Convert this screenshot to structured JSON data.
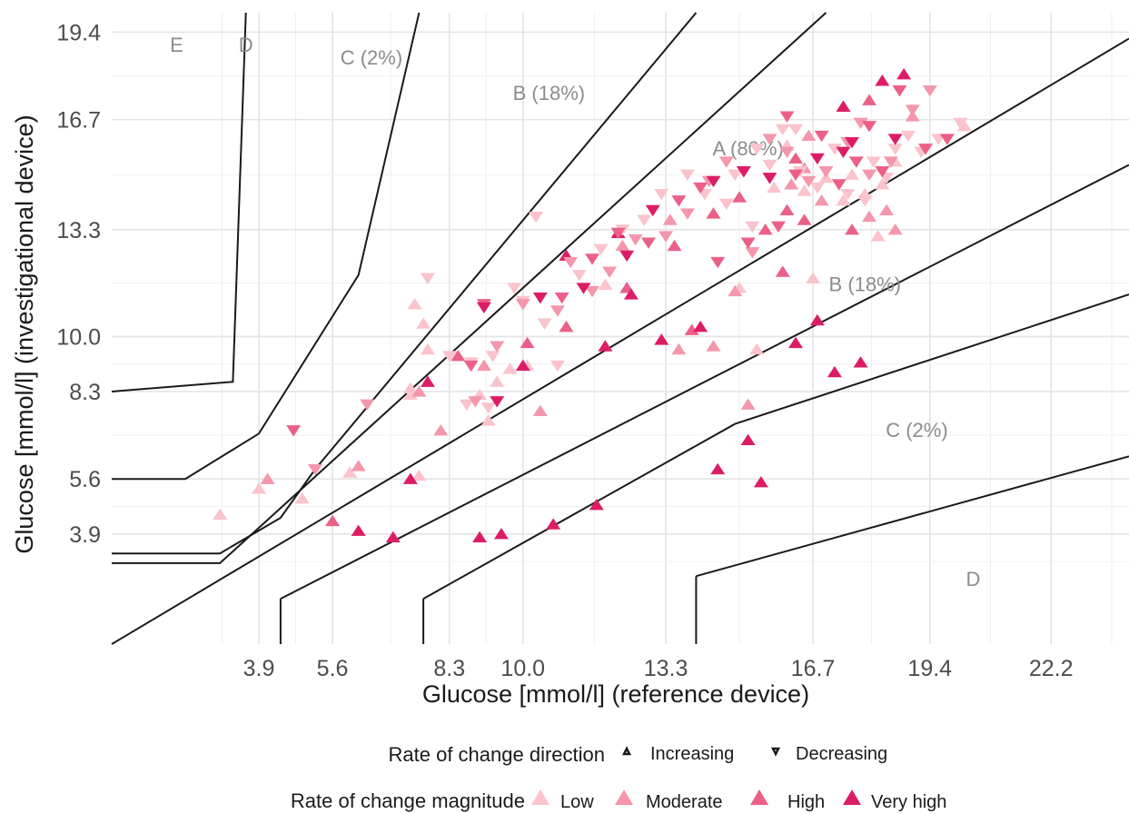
{
  "chart_data": {
    "type": "scatter",
    "title": "",
    "xlabel": "Glucose [mmol/l] (reference device)",
    "ylabel": "Glucose [mmol/l] (investigational device)",
    "xlim": [
      0.5,
      24
    ],
    "ylim": [
      0.5,
      20
    ],
    "xticks": [
      3.9,
      5.6,
      8.3,
      10.0,
      13.3,
      16.7,
      19.4,
      22.2
    ],
    "yticks": [
      3.9,
      5.6,
      8.3,
      10.0,
      13.3,
      16.7,
      19.4
    ],
    "grid": true,
    "zones": [
      {
        "label": "E",
        "x": 2.0,
        "y": 18.8
      },
      {
        "label": "D",
        "x": 3.6,
        "y": 18.8
      },
      {
        "label": "C (2%)",
        "x": 6.5,
        "y": 18.4
      },
      {
        "label": "B (18%)",
        "x": 10.6,
        "y": 17.3
      },
      {
        "label": "A (80%)",
        "x": 15.2,
        "y": 15.6
      },
      {
        "label": "B (18%)",
        "x": 17.9,
        "y": 11.4
      },
      {
        "label": "C (2%)",
        "x": 19.1,
        "y": 6.9
      },
      {
        "label": "D",
        "x": 20.4,
        "y": 2.3
      }
    ],
    "boundary_lines": [
      [
        [
          0.5,
          8.3
        ],
        [
          3.3,
          8.6
        ],
        [
          3.6,
          20.0
        ]
      ],
      [
        [
          0.5,
          5.6
        ],
        [
          2.2,
          5.6
        ],
        [
          3.9,
          7.0
        ],
        [
          6.2,
          11.9
        ],
        [
          7.6,
          20.0
        ]
      ],
      [
        [
          0.5,
          3.3
        ],
        [
          3.0,
          3.3
        ],
        [
          4.4,
          4.4
        ],
        [
          5.2,
          5.9
        ],
        [
          14.0,
          20.0
        ]
      ],
      [
        [
          0.5,
          3.0
        ],
        [
          3.0,
          3.0
        ],
        [
          17.0,
          20.0
        ]
      ],
      [
        [
          0.5,
          0.5
        ],
        [
          24.0,
          19.2
        ]
      ],
      [
        [
          4.4,
          1.9
        ],
        [
          4.4,
          0.5
        ]
      ],
      [
        [
          4.4,
          1.9
        ],
        [
          24.0,
          15.3
        ]
      ],
      [
        [
          7.7,
          1.9
        ],
        [
          7.7,
          0.5
        ]
      ],
      [
        [
          7.7,
          1.9
        ],
        [
          14.9,
          7.3
        ],
        [
          24.0,
          11.3
        ]
      ],
      [
        [
          14.0,
          2.6
        ],
        [
          14.0,
          0.5
        ]
      ],
      [
        [
          14.0,
          2.6
        ],
        [
          24.0,
          6.3
        ]
      ]
    ],
    "legend": {
      "direction_title": "Rate of change direction",
      "direction": [
        {
          "label": "Increasing",
          "shape": "triangle-up"
        },
        {
          "label": "Decreasing",
          "shape": "triangle-down"
        }
      ],
      "magnitude_title": "Rate of change magnitude",
      "magnitude": [
        {
          "label": "Low",
          "color": "#fbc3cc"
        },
        {
          "label": "Moderate",
          "color": "#f497ac"
        },
        {
          "label": "High",
          "color": "#ec6088"
        },
        {
          "label": "Very high",
          "color": "#dc1d66"
        }
      ]
    },
    "series": [
      {
        "dir": "up",
        "mag": "Low",
        "points": [
          [
            3.0,
            4.5
          ],
          [
            3.9,
            5.3
          ],
          [
            4.9,
            5.0
          ],
          [
            6.0,
            5.8
          ],
          [
            7.6,
            5.7
          ],
          [
            7.4,
            8.2
          ],
          [
            7.4,
            8.4
          ],
          [
            7.5,
            11.0
          ],
          [
            7.7,
            10.4
          ],
          [
            7.8,
            9.6
          ],
          [
            9.0,
            8.2
          ],
          [
            9.2,
            7.4
          ],
          [
            9.4,
            8.6
          ],
          [
            9.7,
            9.0
          ],
          [
            10.1,
            9.1
          ],
          [
            11.9,
            11.6
          ],
          [
            15.0,
            11.5
          ],
          [
            16.7,
            11.8
          ],
          [
            15.8,
            14.6
          ],
          [
            16.5,
            14.5
          ],
          [
            17.0,
            14.9
          ],
          [
            17.4,
            14.2
          ],
          [
            17.6,
            15.0
          ],
          [
            17.9,
            14.4
          ],
          [
            18.3,
            14.7
          ],
          [
            18.6,
            15.4
          ],
          [
            18.2,
            13.1
          ],
          [
            15.4,
            9.6
          ],
          [
            16.1,
            15.9
          ],
          [
            20.2,
            16.5
          ]
        ]
      },
      {
        "dir": "up",
        "mag": "Moderate",
        "points": [
          [
            4.1,
            5.6
          ],
          [
            6.2,
            6.0
          ],
          [
            7.6,
            8.3
          ],
          [
            8.1,
            7.1
          ],
          [
            9.1,
            9.1
          ],
          [
            10.4,
            7.7
          ],
          [
            12.3,
            12.8
          ],
          [
            13.4,
            13.6
          ],
          [
            13.6,
            9.6
          ],
          [
            14.4,
            9.7
          ],
          [
            14.9,
            11.4
          ],
          [
            15.2,
            7.9
          ],
          [
            16.2,
            14.7
          ],
          [
            16.5,
            15.2
          ],
          [
            16.9,
            14.2
          ],
          [
            17.4,
            17.1
          ],
          [
            18.0,
            13.7
          ],
          [
            18.4,
            13.9
          ],
          [
            18.6,
            13.3
          ],
          [
            16.6,
            16.2
          ],
          [
            19.0,
            16.8
          ]
        ]
      },
      {
        "dir": "up",
        "mag": "High",
        "points": [
          [
            5.6,
            4.3
          ],
          [
            8.5,
            9.4
          ],
          [
            10.1,
            9.8
          ],
          [
            11.0,
            10.3
          ],
          [
            12.4,
            11.5
          ],
          [
            13.5,
            12.8
          ],
          [
            13.9,
            10.2
          ],
          [
            14.4,
            13.8
          ],
          [
            15.0,
            14.3
          ],
          [
            15.6,
            13.3
          ],
          [
            16.1,
            13.9
          ],
          [
            16.0,
            12.0
          ],
          [
            16.5,
            13.6
          ],
          [
            16.3,
            15.5
          ],
          [
            17.6,
            13.3
          ],
          [
            18.0,
            17.3
          ]
        ]
      },
      {
        "dir": "up",
        "mag": "Very high",
        "points": [
          [
            6.2,
            4.0
          ],
          [
            7.0,
            3.8
          ],
          [
            7.4,
            5.6
          ],
          [
            7.8,
            8.6
          ],
          [
            9.0,
            3.8
          ],
          [
            9.5,
            3.9
          ],
          [
            10.0,
            9.1
          ],
          [
            10.7,
            4.2
          ],
          [
            11.0,
            12.5
          ],
          [
            11.7,
            4.8
          ],
          [
            11.9,
            9.7
          ],
          [
            12.2,
            13.2
          ],
          [
            12.5,
            11.3
          ],
          [
            13.2,
            9.9
          ],
          [
            14.1,
            10.3
          ],
          [
            14.5,
            5.9
          ],
          [
            15.2,
            6.8
          ],
          [
            15.5,
            5.5
          ],
          [
            16.3,
            9.8
          ],
          [
            16.8,
            10.5
          ],
          [
            17.2,
            8.9
          ],
          [
            17.8,
            9.2
          ],
          [
            18.8,
            18.1
          ],
          [
            18.3,
            17.9
          ],
          [
            17.4,
            17.1
          ]
        ]
      },
      {
        "dir": "down",
        "mag": "Low",
        "points": [
          [
            7.8,
            11.8
          ],
          [
            8.3,
            9.4
          ],
          [
            8.8,
            9.2
          ],
          [
            9.3,
            9.4
          ],
          [
            9.8,
            11.5
          ],
          [
            10.0,
            11.1
          ],
          [
            10.5,
            10.4
          ],
          [
            10.3,
            13.7
          ],
          [
            10.8,
            9.1
          ],
          [
            11.3,
            11.9
          ],
          [
            11.8,
            12.7
          ],
          [
            12.3,
            13.3
          ],
          [
            12.8,
            13.6
          ],
          [
            13.2,
            14.4
          ],
          [
            13.8,
            15.0
          ],
          [
            14.2,
            14.4
          ],
          [
            14.7,
            14.1
          ],
          [
            14.9,
            15.0
          ],
          [
            15.3,
            13.4
          ],
          [
            15.4,
            15.8
          ],
          [
            15.7,
            15.3
          ],
          [
            16.0,
            16.4
          ],
          [
            16.4,
            15.1
          ],
          [
            16.8,
            14.6
          ],
          [
            17.2,
            15.8
          ],
          [
            17.5,
            14.4
          ],
          [
            17.9,
            14.2
          ],
          [
            18.1,
            15.4
          ],
          [
            18.4,
            14.9
          ],
          [
            18.6,
            15.8
          ],
          [
            19.2,
            15.7
          ],
          [
            19.6,
            16.1
          ],
          [
            20.1,
            16.6
          ],
          [
            18.9,
            16.2
          ],
          [
            16.3,
            16.4
          ],
          [
            8.7,
            7.9
          ],
          [
            9.2,
            7.8
          ]
        ]
      },
      {
        "dir": "down",
        "mag": "Moderate",
        "points": [
          [
            5.2,
            5.9
          ],
          [
            6.4,
            7.9
          ],
          [
            8.9,
            8.0
          ],
          [
            9.4,
            9.7
          ],
          [
            10.0,
            11.0
          ],
          [
            10.8,
            10.8
          ],
          [
            11.1,
            12.3
          ],
          [
            11.6,
            11.4
          ],
          [
            12.0,
            12.0
          ],
          [
            12.6,
            13.0
          ],
          [
            13.3,
            13.1
          ],
          [
            13.8,
            13.8
          ],
          [
            14.3,
            14.8
          ],
          [
            14.7,
            15.4
          ],
          [
            15.3,
            12.6
          ],
          [
            15.7,
            16.1
          ],
          [
            16.1,
            15.7
          ],
          [
            16.6,
            14.8
          ],
          [
            17.0,
            15.1
          ],
          [
            17.5,
            16.0
          ],
          [
            17.8,
            16.6
          ],
          [
            18.0,
            15.0
          ],
          [
            18.5,
            15.4
          ],
          [
            19.0,
            17.0
          ],
          [
            19.4,
            17.6
          ]
        ]
      },
      {
        "dir": "down",
        "mag": "High",
        "points": [
          [
            4.7,
            7.1
          ],
          [
            8.8,
            9.1
          ],
          [
            9.1,
            11.0
          ],
          [
            10.9,
            11.2
          ],
          [
            11.6,
            12.4
          ],
          [
            12.2,
            13.2
          ],
          [
            12.9,
            12.9
          ],
          [
            13.6,
            14.2
          ],
          [
            14.1,
            14.6
          ],
          [
            14.5,
            12.3
          ],
          [
            15.2,
            12.9
          ],
          [
            15.9,
            13.4
          ],
          [
            16.3,
            15.0
          ],
          [
            16.9,
            16.2
          ],
          [
            17.3,
            14.7
          ],
          [
            17.7,
            15.4
          ],
          [
            18.3,
            15.1
          ],
          [
            18.7,
            17.6
          ],
          [
            19.3,
            15.8
          ],
          [
            19.8,
            16.1
          ],
          [
            18.0,
            16.5
          ],
          [
            16.1,
            16.8
          ]
        ]
      },
      {
        "dir": "down",
        "mag": "Very high",
        "points": [
          [
            9.1,
            10.9
          ],
          [
            9.4,
            8.0
          ],
          [
            10.4,
            11.2
          ],
          [
            11.4,
            11.5
          ],
          [
            12.4,
            12.5
          ],
          [
            13.0,
            13.9
          ],
          [
            14.4,
            14.8
          ],
          [
            15.1,
            15.1
          ],
          [
            15.7,
            14.9
          ],
          [
            16.8,
            15.5
          ],
          [
            17.4,
            15.7
          ],
          [
            17.6,
            16.0
          ],
          [
            18.6,
            16.1
          ]
        ]
      }
    ]
  }
}
